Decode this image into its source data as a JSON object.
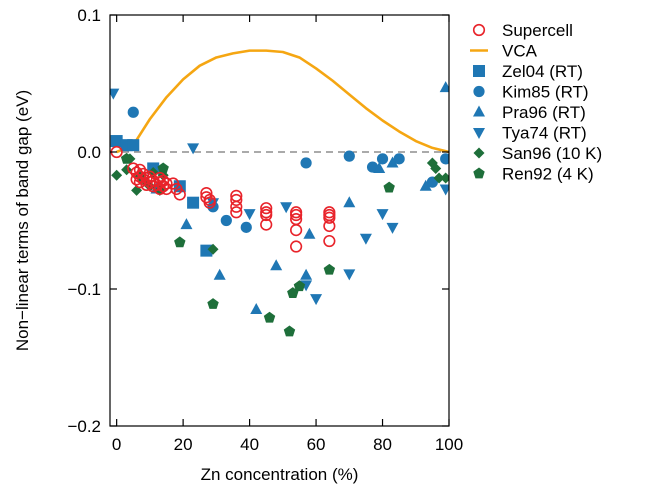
{
  "chart_data": {
    "type": "scatter",
    "title": "",
    "xlabel": "Zn concentration (%)",
    "ylabel": "Non−linear terms of band gap (eV)",
    "xlim": [
      -2,
      100
    ],
    "ylim": [
      -0.2,
      0.1
    ],
    "x_ticks": [
      0,
      20,
      40,
      60,
      80,
      100
    ],
    "x_tick_labels": [
      "0",
      "20",
      "40",
      "60",
      "80",
      "100"
    ],
    "y_ticks": [
      -0.2,
      -0.1,
      0.0,
      0.1
    ],
    "y_tick_labels": [
      "−0.2",
      "−0.1",
      "0.0",
      "0.1"
    ],
    "grid": false,
    "legend_position": "right",
    "reference_line_y": 0,
    "series": [
      {
        "name": "Supercell",
        "marker": "open-circle",
        "color": "#e8232a",
        "points": [
          [
            0,
            0
          ],
          [
            5,
            -0.012
          ],
          [
            6,
            -0.015
          ],
          [
            6,
            -0.02
          ],
          [
            7,
            -0.013
          ],
          [
            7,
            -0.018
          ],
          [
            7,
            -0.022
          ],
          [
            8,
            -0.016
          ],
          [
            8,
            -0.02
          ],
          [
            9,
            -0.019
          ],
          [
            9,
            -0.024
          ],
          [
            10,
            -0.018
          ],
          [
            10,
            -0.022
          ],
          [
            11,
            -0.021
          ],
          [
            11,
            -0.025
          ],
          [
            12,
            -0.024
          ],
          [
            13,
            -0.019
          ],
          [
            13,
            -0.022
          ],
          [
            13,
            -0.027
          ],
          [
            14,
            -0.021
          ],
          [
            14,
            -0.025
          ],
          [
            15,
            -0.023
          ],
          [
            15,
            -0.027
          ],
          [
            17,
            -0.023
          ],
          [
            18,
            -0.027
          ],
          [
            19,
            -0.031
          ],
          [
            27,
            -0.03
          ],
          [
            27,
            -0.033
          ],
          [
            28,
            -0.035
          ],
          [
            28,
            -0.037
          ],
          [
            36,
            -0.032
          ],
          [
            36,
            -0.035
          ],
          [
            36,
            -0.04
          ],
          [
            36,
            -0.044
          ],
          [
            45,
            -0.041
          ],
          [
            45,
            -0.044
          ],
          [
            45,
            -0.046
          ],
          [
            45,
            -0.053
          ],
          [
            54,
            -0.044
          ],
          [
            54,
            -0.046
          ],
          [
            54,
            -0.049
          ],
          [
            54,
            -0.057
          ],
          [
            54,
            -0.069
          ],
          [
            64,
            -0.044
          ],
          [
            64,
            -0.046
          ],
          [
            64,
            -0.048
          ],
          [
            64,
            -0.054
          ],
          [
            64,
            -0.065
          ]
        ]
      },
      {
        "name": "VCA",
        "marker": "line",
        "color": "#f5a612",
        "points": [
          [
            0,
            0
          ],
          [
            5,
            0.005
          ],
          [
            10,
            0.024
          ],
          [
            15,
            0.04
          ],
          [
            20,
            0.053
          ],
          [
            25,
            0.063
          ],
          [
            30,
            0.069
          ],
          [
            35,
            0.072
          ],
          [
            40,
            0.074
          ],
          [
            45,
            0.074
          ],
          [
            50,
            0.073
          ],
          [
            55,
            0.069
          ],
          [
            60,
            0.061
          ],
          [
            65,
            0.052
          ],
          [
            70,
            0.042
          ],
          [
            75,
            0.032
          ],
          [
            80,
            0.023
          ],
          [
            85,
            0.015
          ],
          [
            90,
            0.008
          ],
          [
            95,
            0.003
          ],
          [
            100,
            0
          ]
        ]
      },
      {
        "name": "Zel04 (RT)",
        "marker": "square",
        "color": "#1f77b4",
        "points": [
          [
            0,
            0.008
          ],
          [
            3,
            0.005
          ],
          [
            5,
            0.005
          ],
          [
            11,
            -0.012
          ],
          [
            19,
            -0.025
          ],
          [
            23,
            -0.037
          ],
          [
            27,
            -0.072
          ]
        ]
      },
      {
        "name": "Kim85 (RT)",
        "marker": "circle",
        "color": "#1f77b4",
        "points": [
          [
            5,
            0.029
          ],
          [
            29,
            -0.04
          ],
          [
            33,
            -0.05
          ],
          [
            39,
            -0.055
          ],
          [
            57,
            -0.008
          ],
          [
            70,
            -0.003
          ],
          [
            77,
            -0.011
          ],
          [
            80,
            -0.005
          ],
          [
            85,
            -0.005
          ],
          [
            95,
            -0.022
          ],
          [
            99,
            -0.005
          ]
        ]
      },
      {
        "name": "Pra96 (RT)",
        "marker": "triangle-up",
        "color": "#1f77b4",
        "points": [
          [
            12,
            -0.027
          ],
          [
            21,
            -0.053
          ],
          [
            31,
            -0.09
          ],
          [
            42,
            -0.115
          ],
          [
            48,
            -0.083
          ],
          [
            57,
            -0.09
          ],
          [
            58,
            -0.06
          ],
          [
            70,
            -0.037
          ],
          [
            79,
            -0.012
          ],
          [
            83,
            -0.008
          ],
          [
            93,
            -0.025
          ],
          [
            99,
            0.047
          ]
        ]
      },
      {
        "name": "Tya74 (RT)",
        "marker": "triangle-down",
        "color": "#1f77b4",
        "points": [
          [
            -1,
            0.043
          ],
          [
            23,
            0.003
          ],
          [
            29,
            -0.037
          ],
          [
            40,
            -0.045
          ],
          [
            51,
            -0.04
          ],
          [
            57,
            -0.097
          ],
          [
            60,
            -0.107
          ],
          [
            70,
            -0.089
          ],
          [
            75,
            -0.063
          ],
          [
            80,
            -0.045
          ],
          [
            83,
            -0.055
          ],
          [
            99,
            -0.027
          ]
        ]
      },
      {
        "name": "San96 (10 K)",
        "marker": "diamond",
        "color": "#1e6f3a",
        "points": [
          [
            0,
            -0.017
          ],
          [
            3,
            -0.013
          ],
          [
            4,
            -0.005
          ],
          [
            6,
            -0.028
          ],
          [
            7,
            -0.018
          ],
          [
            9,
            -0.022
          ],
          [
            10,
            -0.025
          ],
          [
            11,
            -0.015
          ],
          [
            13,
            -0.028
          ],
          [
            14,
            -0.017
          ],
          [
            29,
            -0.071
          ],
          [
            95,
            -0.008
          ],
          [
            96,
            -0.012
          ],
          [
            97,
            -0.019
          ],
          [
            99,
            -0.019
          ]
        ]
      },
      {
        "name": "Ren92 (4 K)",
        "marker": "pentagon",
        "color": "#1e6f3a",
        "points": [
          [
            3,
            -0.005
          ],
          [
            14,
            -0.012
          ],
          [
            19,
            -0.066
          ],
          [
            29,
            -0.111
          ],
          [
            46,
            -0.121
          ],
          [
            52,
            -0.131
          ],
          [
            53,
            -0.103
          ],
          [
            55,
            -0.098
          ],
          [
            64,
            -0.086
          ],
          [
            82,
            -0.026
          ]
        ]
      }
    ]
  }
}
